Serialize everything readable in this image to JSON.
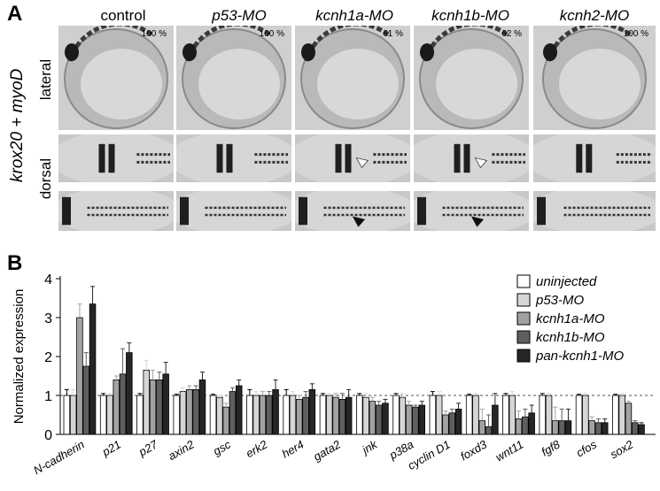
{
  "panel_a": {
    "letter": "A",
    "columns": [
      "control",
      "p53-MO",
      "kcnh1a-MO",
      "kcnh1b-MO",
      "kcnh2-MO"
    ],
    "percentages": [
      "100 %",
      "100 %",
      "61 %",
      "62 %",
      "100 %"
    ],
    "side_label": "krox20 + myoD",
    "row_labels": [
      "lateral",
      "dorsal"
    ]
  },
  "panel_b": {
    "letter": "B",
    "colors": {
      "uninjected": "#ffffff",
      "p53-MO": "#d6d6d6",
      "kcnh1a-MO": "#a2a2a2",
      "kcnh1b-MO": "#5f5f5f",
      "pan-kcnh1-MO": "#262626"
    }
  },
  "chart_data": {
    "type": "bar",
    "ylabel": "Normalized expression",
    "ylim": [
      0,
      4
    ],
    "yticks": [
      "0",
      "1",
      "2",
      "3",
      "4"
    ],
    "reference_line": 1,
    "legend_position": "top-right",
    "categories": [
      "N-cadherin",
      "p21",
      "p27",
      "axin2",
      "gsc",
      "erk2",
      "her4",
      "gata2",
      "jnk",
      "p38a",
      "cyclin D1",
      "foxd3",
      "wnt11",
      "fgf8",
      "cfos",
      "sox2"
    ],
    "series": [
      {
        "name": "uninjected",
        "values": [
          1.0,
          1.0,
          1.0,
          1.0,
          1.0,
          1.0,
          1.0,
          1.0,
          1.0,
          1.0,
          1.0,
          1.0,
          1.0,
          1.0,
          1.0,
          1.0
        ],
        "errors": [
          0.15,
          0.05,
          0.05,
          0.03,
          0.03,
          0.15,
          0.15,
          0.05,
          0.05,
          0.05,
          0.1,
          0.03,
          0.05,
          0.05,
          0.03,
          0.03
        ]
      },
      {
        "name": "p53-MO",
        "values": [
          1.0,
          1.0,
          1.65,
          1.1,
          0.95,
          1.0,
          1.0,
          1.0,
          0.95,
          0.95,
          1.0,
          1.0,
          1.0,
          1.0,
          1.0,
          1.0
        ],
        "errors": [
          0.15,
          0.05,
          0.25,
          0.1,
          0.05,
          0.1,
          0.1,
          0.05,
          0.1,
          0.1,
          0.1,
          0.05,
          0.1,
          0.05,
          0.05,
          0.05
        ]
      },
      {
        "name": "kcnh1a-MO",
        "values": [
          3.0,
          1.4,
          1.4,
          1.15,
          0.7,
          1.0,
          0.9,
          0.95,
          0.85,
          0.75,
          0.5,
          0.35,
          0.4,
          0.35,
          0.35,
          0.8
        ]
      },
      {
        "name": "kcnh1b-MO",
        "values": [
          1.75,
          1.55,
          1.4,
          1.15,
          1.1,
          1.0,
          0.95,
          0.9,
          0.75,
          0.7,
          0.55,
          0.2,
          0.45,
          0.35,
          0.3,
          0.3
        ]
      },
      {
        "name": "pan-kcnh1-MO",
        "values": [
          3.35,
          2.1,
          1.55,
          1.4,
          1.25,
          1.15,
          1.15,
          0.95,
          0.8,
          0.75,
          0.65,
          0.75,
          0.55,
          0.35,
          0.3,
          0.25
        ]
      }
    ],
    "errors_kcnh1a": [
      0.35,
      0.1,
      0.25,
      0.1,
      0.1,
      0.1,
      0.1,
      0.1,
      0.1,
      0.1,
      0.1,
      0.3,
      0.2,
      0.35,
      0.1,
      0.05
    ],
    "errors_kcnh1b": [
      0.35,
      0.65,
      0.2,
      0.1,
      0.1,
      0.1,
      0.15,
      0.15,
      0.1,
      0.05,
      0.1,
      0.3,
      0.2,
      0.3,
      0.1,
      0.05
    ],
    "errors_pan": [
      0.45,
      0.25,
      0.3,
      0.2,
      0.15,
      0.25,
      0.15,
      0.2,
      0.1,
      0.1,
      0.15,
      0.3,
      0.2,
      0.3,
      0.1,
      0.05
    ]
  }
}
